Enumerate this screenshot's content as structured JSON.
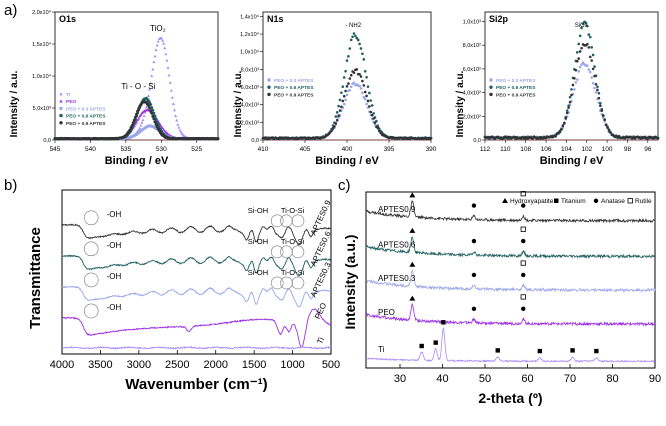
{
  "figure": {
    "panel_labels": {
      "a": "a)",
      "b": "b)",
      "c": "c)"
    },
    "colors": {
      "ti": "#a78bfa",
      "peo": "#9b30e6",
      "peo03": "#9aa6ea",
      "peo06": "#1f5f60",
      "peo09": "#333333",
      "gray": "#c8c8c8",
      "red": "#c84a4a"
    }
  },
  "chart_data": [
    {
      "id": "o1s",
      "type": "scatter",
      "title": "O1s",
      "xlabel": "Binding / eV",
      "ylabel": "Intensity / a.u.",
      "xlim": [
        545,
        522
      ],
      "ylim": [
        0,
        2.0
      ],
      "xticks": [
        "545",
        "540",
        "535",
        "530",
        "525"
      ],
      "yticks": [
        "0,0",
        "5,0x10³",
        "1,0x10⁴",
        "1,5x10⁴",
        "2,0x10⁴"
      ],
      "annotations": [
        "TiO₂",
        "Ti - O - Si"
      ],
      "legend": [
        "Ti",
        "PEO",
        "PEO + 0.3 APTES",
        "PEO + 0.6 APTES",
        "PEO + 0.9 APTES"
      ],
      "series": [
        {
          "name": "Ti",
          "peaks": [
            {
              "c": 530.0,
              "h": 1.48,
              "w": 1.2
            },
            {
              "c": 531.6,
              "h": 0.2,
              "w": 1.3
            }
          ],
          "color_key": "ti"
        },
        {
          "name": "PEO",
          "peaks": [
            {
              "c": 531.5,
              "h": 0.32,
              "w": 1.4
            },
            {
              "c": 532.7,
              "h": 0.18,
              "w": 1.2
            }
          ],
          "color_key": "peo"
        },
        {
          "name": "PEO + 0.3 APTES",
          "peaks": [
            {
              "c": 531.6,
              "h": 0.2,
              "w": 1.3
            }
          ],
          "color_key": "peo03"
        },
        {
          "name": "PEO + 0.6 APTES",
          "peaks": [
            {
              "c": 532.2,
              "h": 0.63,
              "w": 1.2
            }
          ],
          "color_key": "peo06"
        },
        {
          "name": "PEO + 0.9 APTES",
          "peaks": [
            {
              "c": 532.4,
              "h": 0.58,
              "w": 1.2
            }
          ],
          "color_key": "peo09"
        }
      ]
    },
    {
      "id": "n1s",
      "type": "scatter",
      "title": "N1s",
      "xlabel": "Binding / eV",
      "ylabel": "Intensity / a.u.",
      "xlim": [
        410,
        390
      ],
      "ylim": [
        0,
        1.45
      ],
      "xticks": [
        "410",
        "405",
        "400",
        "395",
        "390"
      ],
      "yticks": [
        "0,0",
        "2,0x10³",
        "4,0x10³",
        "6,0x10³",
        "8,0x10³",
        "1,0x10⁴",
        "1,2x10⁴",
        "1,4x10⁴"
      ],
      "annotations": [
        "- NH2"
      ],
      "legend": [
        "PEO + 0.3 APTES",
        "PEO + 0.6 APTES",
        "PEO + 0.9 APTES"
      ],
      "series": [
        {
          "name": "PEO + 0.3 APTES",
          "peaks": [
            {
              "c": 399.0,
              "h": 0.62,
              "w": 1.4
            }
          ],
          "color_key": "peo03"
        },
        {
          "name": "PEO + 0.6 APTES",
          "peaks": [
            {
              "c": 399.0,
              "h": 1.17,
              "w": 1.3
            }
          ],
          "color_key": "peo06"
        },
        {
          "name": "PEO + 0.9 APTES",
          "peaks": [
            {
              "c": 399.0,
              "h": 0.77,
              "w": 1.35
            }
          ],
          "color_key": "peo09"
        }
      ]
    },
    {
      "id": "si2p",
      "type": "scatter",
      "title": "Si2p",
      "xlabel": "Binding / eV",
      "ylabel": "Intensity / a.u.",
      "xlim": [
        112,
        95
      ],
      "ylim": [
        0,
        1.08
      ],
      "xticks": [
        "112",
        "110",
        "108",
        "106",
        "104",
        "102",
        "100",
        "98",
        "96"
      ],
      "yticks": [
        "0,0",
        "2,0x10²",
        "4,0x10²",
        "6,0x10²",
        "8,0x10²",
        "1,0x10³"
      ],
      "annotations": [
        "SiOx"
      ],
      "legend": [
        "PEO + 0.3 APTES",
        "PEO + 0.6 APTES",
        "PEO + 0.9 APTES"
      ],
      "series": [
        {
          "name": "PEO + 0.3 APTES",
          "peaks": [
            {
              "c": 102.2,
              "h": 0.63,
              "w": 1.1
            }
          ],
          "color_key": "peo03"
        },
        {
          "name": "PEO + 0.6 APTES",
          "peaks": [
            {
              "c": 102.2,
              "h": 0.97,
              "w": 1.0
            }
          ],
          "color_key": "peo06"
        },
        {
          "name": "PEO + 0.9 APTES",
          "peaks": [
            {
              "c": 102.2,
              "h": 0.8,
              "w": 1.05
            }
          ],
          "color_key": "peo09"
        }
      ]
    },
    {
      "id": "ftir",
      "type": "line",
      "xlabel": "Wavenumber (cm⁻¹)",
      "ylabel": "Transmittance",
      "xlim": [
        4000,
        500
      ],
      "xticks": [
        "4000",
        "3500",
        "3000",
        "2500",
        "2000",
        "1500",
        "1000",
        "500"
      ],
      "series": [
        {
          "name": "APTES0.9",
          "offset": 5.2,
          "color_key": "peo09"
        },
        {
          "name": "APTES0.6",
          "offset": 3.95,
          "color_key": "peo06"
        },
        {
          "name": "APTES0.3",
          "offset": 2.7,
          "color_key": "peo03"
        },
        {
          "name": "PEO",
          "offset": 1.45,
          "color_key": "peo"
        },
        {
          "name": "Ti",
          "offset": 0.25,
          "color_key": "ti"
        }
      ],
      "annotations": [
        {
          "text": "-OH",
          "series": "APTES0.9",
          "x": 3450
        },
        {
          "text": "Si-OH",
          "series": "APTES0.9",
          "x": 1450
        },
        {
          "text": "Ti-O-Si",
          "series": "APTES0.9",
          "x": 1000
        },
        {
          "text": "-OH",
          "series": "APTES0.6",
          "x": 3450
        },
        {
          "text": "Si-OH",
          "series": "APTES0.6",
          "x": 1450
        },
        {
          "text": "Ti-O-Si",
          "series": "APTES0.6",
          "x": 1000
        },
        {
          "text": "-OH",
          "series": "APTES0.3",
          "x": 3450
        },
        {
          "text": "Si-OH",
          "series": "APTES0.3",
          "x": 1450
        },
        {
          "text": "Ti-O-Si",
          "series": "APTES0.3",
          "x": 1000
        },
        {
          "text": "-OH",
          "series": "PEO",
          "x": 3450
        }
      ]
    },
    {
      "id": "xrd",
      "type": "line",
      "xlabel": "2-theta (º)",
      "ylabel": "Intensity (a.u.)",
      "xlim": [
        22,
        90
      ],
      "xticks": [
        "30",
        "40",
        "50",
        "60",
        "70",
        "80",
        "90"
      ],
      "legend": [
        "Hydroxyapatite",
        "Titanium",
        "Anatase",
        "Rutile"
      ],
      "series": [
        {
          "name": "APTES0.9",
          "offset": 4.35,
          "color_key": "peo09"
        },
        {
          "name": "APTES0.6",
          "offset": 3.3,
          "color_key": "peo06"
        },
        {
          "name": "APTES0.3",
          "offset": 2.3,
          "color_key": "peo03"
        },
        {
          "name": "PEO",
          "offset": 1.3,
          "color_key": "peo"
        },
        {
          "name": "Ti",
          "offset": 0.2,
          "color_key": "ti"
        }
      ],
      "ti_peaks": [
        {
          "x": 35.1,
          "h": 0.25
        },
        {
          "x": 38.4,
          "h": 0.35
        },
        {
          "x": 40.2,
          "h": 0.95
        },
        {
          "x": 53.0,
          "h": 0.12
        },
        {
          "x": 62.9,
          "h": 0.1
        },
        {
          "x": 70.6,
          "h": 0.12
        },
        {
          "x": 76.2,
          "h": 0.1
        }
      ],
      "coating_peaks": [
        {
          "x": 32.9,
          "h": 0.45
        },
        {
          "x": 47.4,
          "h": 0.1
        },
        {
          "x": 59.0,
          "h": 0.12
        }
      ],
      "markers": {
        "hydroxyapatite": [
          32.9
        ],
        "titanium": [
          35.1,
          38.4,
          40.2,
          53.0,
          62.9,
          70.6,
          76.2
        ],
        "anatase": [
          47.4,
          59.0
        ],
        "rutile": [
          59.0
        ]
      }
    }
  ]
}
